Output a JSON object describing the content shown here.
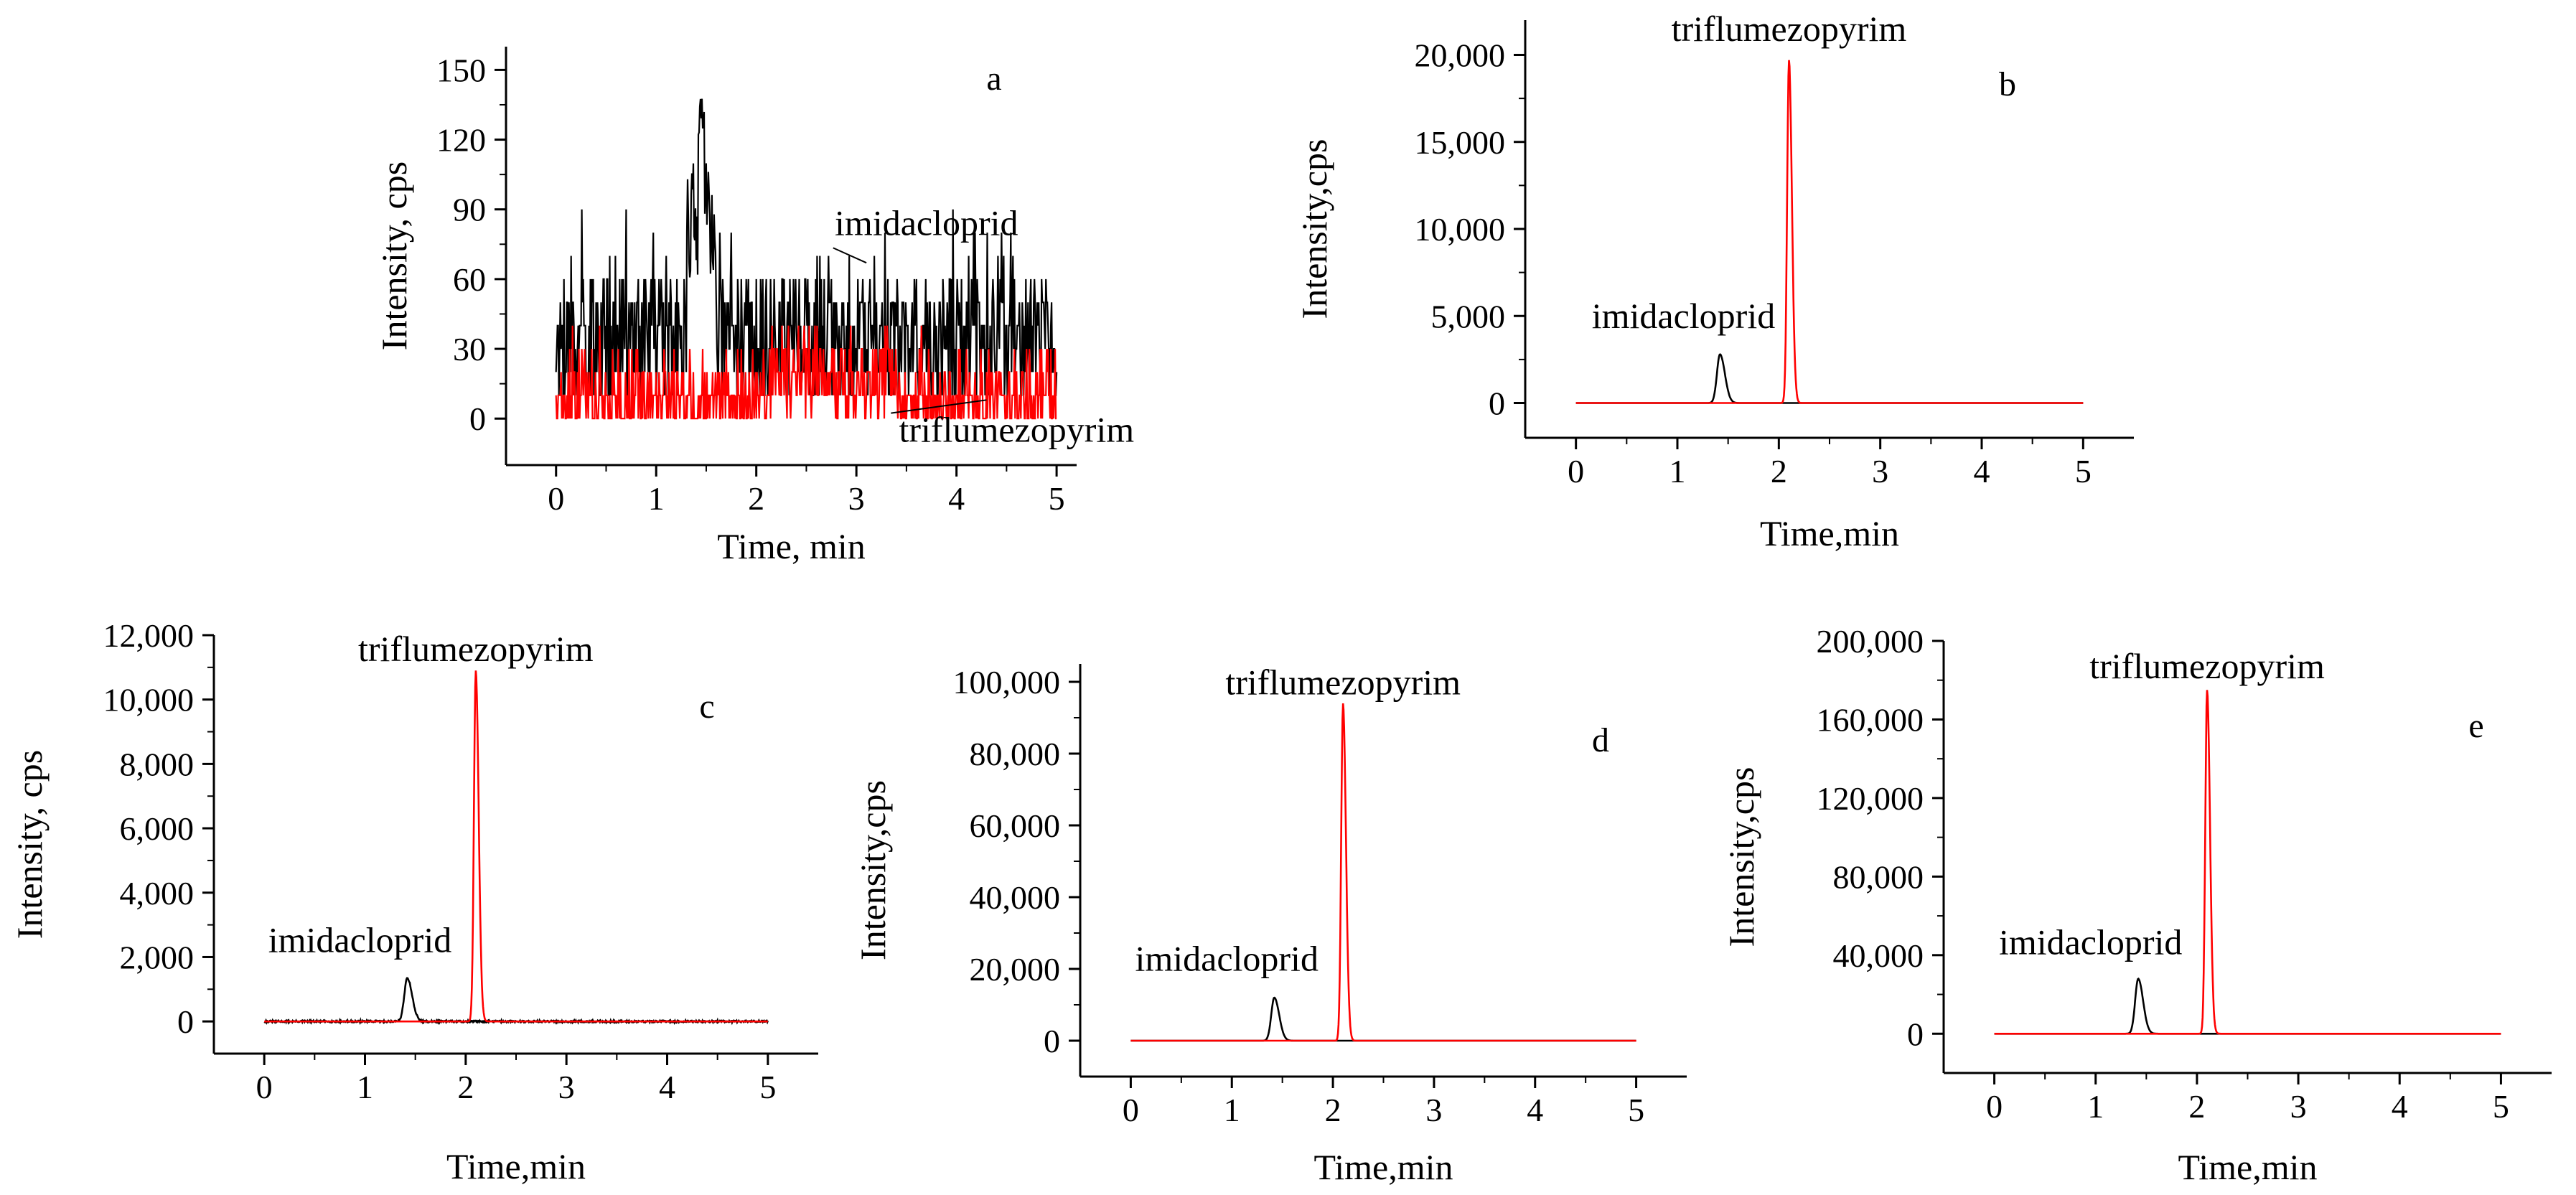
{
  "colors": {
    "imidacloprid": "#000000",
    "triflumezopyrim": "#ff0000",
    "axis": "#000000"
  },
  "chart_data": [
    {
      "panel": "a",
      "type": "line",
      "xlabel": "Time, min",
      "ylabel": "Intensity, cps",
      "xlim": [
        -0.5,
        5.2
      ],
      "ylim": [
        -20,
        160
      ],
      "xticks": [
        0,
        1,
        2,
        3,
        4,
        5
      ],
      "xtick_labels": [
        "0",
        "1",
        "2",
        "3",
        "4",
        "5"
      ],
      "yticks": [
        0,
        30,
        60,
        90,
        120,
        150
      ],
      "ytick_labels": [
        "0",
        "30",
        "60",
        "90",
        "120",
        "150"
      ],
      "noise": true,
      "series": [
        {
          "name": "imidacloprid",
          "color": "#000000",
          "baseline": 30,
          "noise_min": 0,
          "noise_max": 70,
          "peak_time": 1.45,
          "peak_height": 140
        },
        {
          "name": "triflumezopyrim",
          "color": "#ff0000",
          "baseline": 0,
          "noise_min": 0,
          "noise_max": 40
        }
      ],
      "annotations": [
        {
          "text": "imidacloprid",
          "x": 3.1,
          "y": 67,
          "label_x": 3.7,
          "label_y": 79
        },
        {
          "text": "triflumezopyrim",
          "x": 4.3,
          "y": 8,
          "label_x": 4.6,
          "label_y": -10
        }
      ]
    },
    {
      "panel": "b",
      "type": "line",
      "xlabel": "Time,min",
      "ylabel": "Intensity,cps",
      "xlim": [
        -0.5,
        5.5
      ],
      "ylim": [
        -2000,
        22000
      ],
      "xticks": [
        0,
        1,
        2,
        3,
        4,
        5
      ],
      "xtick_labels": [
        "0",
        "1",
        "2",
        "3",
        "4",
        "5"
      ],
      "yticks": [
        0,
        5000,
        10000,
        15000,
        20000
      ],
      "ytick_labels": [
        "0",
        "5,000",
        "10,000",
        "15,000",
        "20,000"
      ],
      "series": [
        {
          "name": "imidacloprid",
          "color": "#000000",
          "peak_time": 1.42,
          "peak_height": 2800,
          "width": 0.03
        },
        {
          "name": "triflumezopyrim",
          "color": "#ff0000",
          "peak_time": 2.1,
          "peak_height": 19700,
          "width": 0.018
        }
      ],
      "annotations": [
        {
          "text": "triflumezopyrim",
          "label_x": 2.1,
          "label_y": 20800
        },
        {
          "text": "imidacloprid",
          "label_x": 1.06,
          "label_y": 4300
        }
      ]
    },
    {
      "panel": "c",
      "type": "line",
      "xlabel": "Time,min",
      "ylabel": "Intensity, cps",
      "xlim": [
        -0.5,
        5.5
      ],
      "ylim": [
        -1000,
        12000
      ],
      "xticks": [
        0,
        1,
        2,
        3,
        4,
        5
      ],
      "xtick_labels": [
        "0",
        "1",
        "2",
        "3",
        "4",
        "5"
      ],
      "yticks": [
        0,
        2000,
        4000,
        6000,
        8000,
        10000,
        12000
      ],
      "ytick_labels": [
        "0",
        "2,000",
        "4,000",
        "6,000",
        "8,000",
        "10,000",
        "12,000"
      ],
      "series": [
        {
          "name": "imidacloprid",
          "color": "#000000",
          "peak_time": 1.42,
          "peak_height": 1350,
          "width": 0.03,
          "baseline_noise": 60
        },
        {
          "name": "triflumezopyrim",
          "color": "#ff0000",
          "peak_time": 2.1,
          "peak_height": 10900,
          "width": 0.018
        }
      ],
      "annotations": [
        {
          "text": "triflumezopyrim",
          "label_x": 2.1,
          "label_y": 11200
        },
        {
          "text": "imidacloprid",
          "label_x": 0.95,
          "label_y": 2150
        }
      ]
    },
    {
      "panel": "d",
      "type": "line",
      "xlabel": "Time,min",
      "ylabel": "Intensity,cps",
      "xlim": [
        -0.5,
        5.5
      ],
      "ylim": [
        -10000,
        105000
      ],
      "xticks": [
        0,
        1,
        2,
        3,
        4,
        5
      ],
      "xtick_labels": [
        "0",
        "1",
        "2",
        "3",
        "4",
        "5"
      ],
      "yticks": [
        0,
        20000,
        40000,
        60000,
        80000,
        100000
      ],
      "ytick_labels": [
        "0",
        "20,000",
        "40,000",
        "60,000",
        "80,000",
        "100,000"
      ],
      "series": [
        {
          "name": "imidacloprid",
          "color": "#000000",
          "peak_time": 1.42,
          "peak_height": 12000,
          "width": 0.03
        },
        {
          "name": "triflumezopyrim",
          "color": "#ff0000",
          "peak_time": 2.1,
          "peak_height": 94000,
          "width": 0.018
        }
      ],
      "annotations": [
        {
          "text": "triflumezopyrim",
          "label_x": 2.1,
          "label_y": 96500
        },
        {
          "text": "imidacloprid",
          "label_x": 0.95,
          "label_y": 19500
        }
      ]
    },
    {
      "panel": "e",
      "type": "line",
      "xlabel": "Time,min",
      "ylabel": "Intensity,cps",
      "xlim": [
        -0.5,
        5.5
      ],
      "ylim": [
        -20000,
        200000
      ],
      "xticks": [
        0,
        1,
        2,
        3,
        4,
        5
      ],
      "xtick_labels": [
        "0",
        "1",
        "2",
        "3",
        "4",
        "5"
      ],
      "yticks": [
        0,
        40000,
        80000,
        120000,
        160000,
        200000
      ],
      "ytick_labels": [
        "0",
        "40,000",
        "80,000",
        "120,000",
        "160,000",
        "200,000"
      ],
      "series": [
        {
          "name": "imidacloprid",
          "color": "#000000",
          "peak_time": 1.42,
          "peak_height": 28000,
          "width": 0.03
        },
        {
          "name": "triflumezopyrim",
          "color": "#ff0000",
          "peak_time": 2.1,
          "peak_height": 175000,
          "width": 0.018
        }
      ],
      "annotations": [
        {
          "text": "triflumezopyrim",
          "label_x": 2.1,
          "label_y": 181000
        },
        {
          "text": "imidacloprid",
          "label_x": 0.95,
          "label_y": 40500
        }
      ]
    }
  ]
}
